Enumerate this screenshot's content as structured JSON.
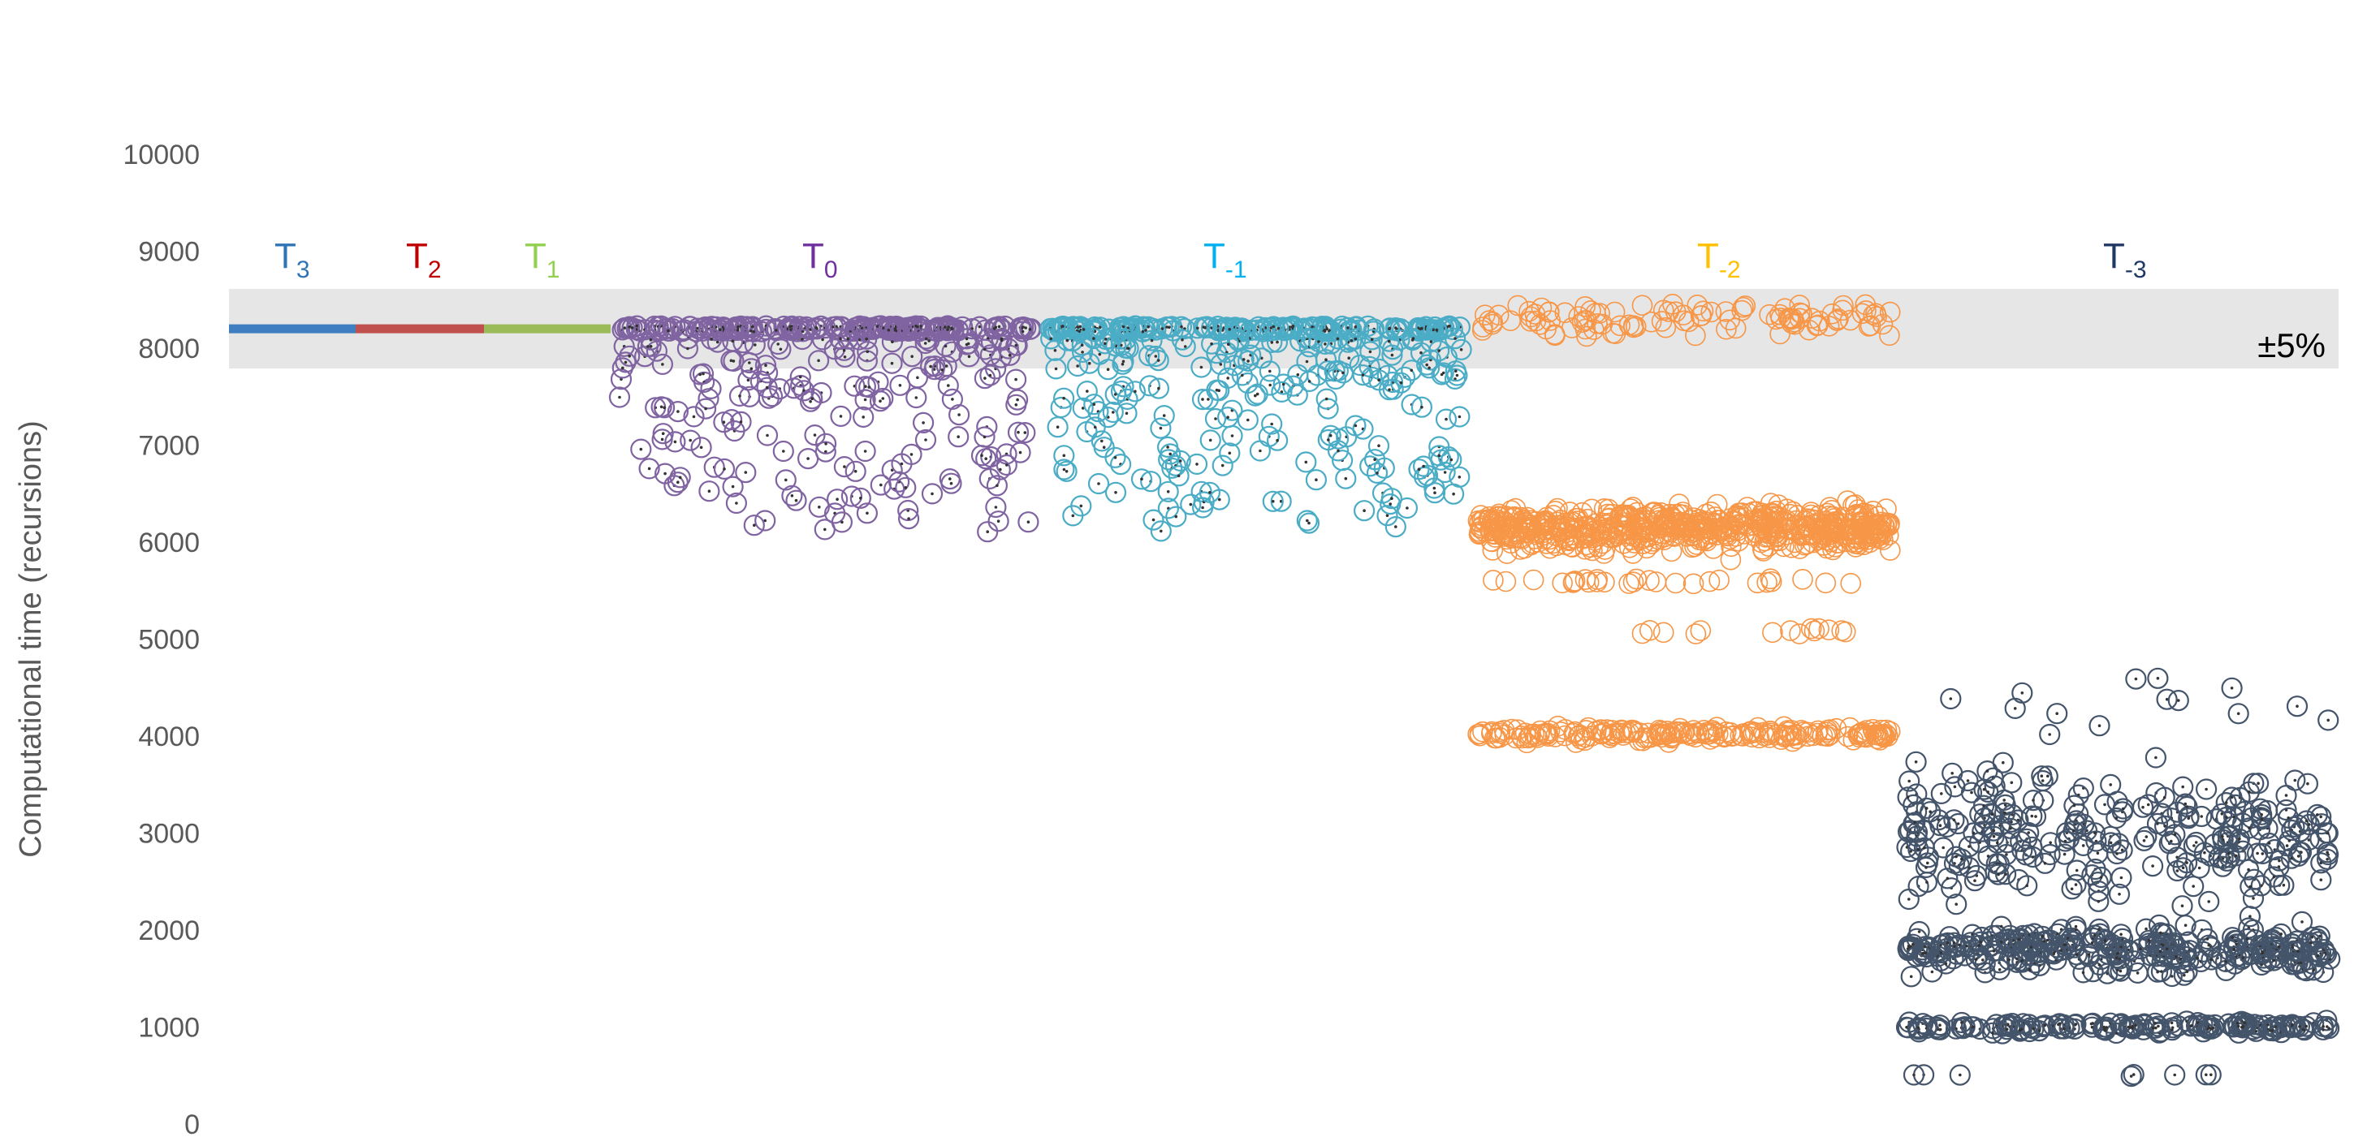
{
  "chart_data": {
    "type": "scatter",
    "ylabel": "Computational time (recursions)",
    "ylim": [
      0,
      10000
    ],
    "yticks": [
      0,
      1000,
      2000,
      3000,
      4000,
      5000,
      6000,
      7000,
      8000,
      9000,
      10000
    ],
    "grid": false,
    "reference_band": {
      "center": 8200,
      "low": 7790,
      "high": 8610,
      "label": "±5%",
      "color": "#e6e6e6"
    },
    "segments": [
      {
        "name": "T",
        "sub": "3",
        "color": "#3f7fc1",
        "label_color": "#2f75b5",
        "kind": "line",
        "value": 8200
      },
      {
        "name": "T",
        "sub": "2",
        "color": "#c0504d",
        "label_color": "#c00000",
        "kind": "line",
        "value": 8200
      },
      {
        "name": "T",
        "sub": "1",
        "color": "#9bbb59",
        "label_color": "#92d050",
        "kind": "line",
        "value": 8200
      },
      {
        "name": "T",
        "sub": "0",
        "color": "#8064a2",
        "label_color": "#7030a0",
        "kind": "points",
        "marker": "circle-dot",
        "clusters": [
          {
            "value": 8200,
            "count": 180,
            "spread": 30
          },
          {
            "value": 7500,
            "count": 190,
            "spread": 650
          }
        ]
      },
      {
        "name": "T",
        "sub": "-1",
        "color": "#4bacc6",
        "label_color": "#00b0f0",
        "kind": "points",
        "marker": "circle-dot",
        "clusters": [
          {
            "value": 8200,
            "count": 170,
            "spread": 30
          },
          {
            "value": 7500,
            "count": 230,
            "spread": 650
          }
        ]
      },
      {
        "name": "T",
        "sub": "-2",
        "color": "#f79646",
        "label_color": "#ffc000",
        "kind": "points",
        "marker": "circle",
        "clusters": [
          {
            "value": 8300,
            "count": 110,
            "spread": 200
          },
          {
            "value": 6150,
            "count": 650,
            "spread": 220
          },
          {
            "value": 5600,
            "count": 28,
            "spread": 30
          },
          {
            "value": 5080,
            "count": 14,
            "spread": 30
          },
          {
            "value": 4020,
            "count": 210,
            "spread": 70
          }
        ]
      },
      {
        "name": "T",
        "sub": "-3",
        "color": "#44546a",
        "label_color": "#1f3864",
        "kind": "points",
        "marker": "circle-dot",
        "clusters": [
          {
            "value": 3000,
            "count": 260,
            "spread": 700
          },
          {
            "value": 1800,
            "count": 300,
            "spread": 230
          },
          {
            "value": 1000,
            "count": 150,
            "spread": 60
          },
          {
            "value": 4350,
            "count": 14,
            "spread": 300
          },
          {
            "value": 500,
            "count": 8,
            "spread": 10
          }
        ]
      }
    ]
  }
}
